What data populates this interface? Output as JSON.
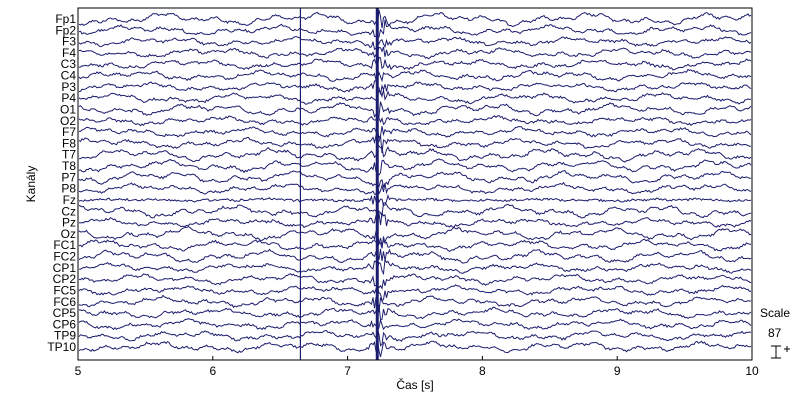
{
  "chart_data": {
    "type": "line",
    "title": "",
    "xlabel": "Čas [s]",
    "ylabel": "Kanály",
    "xlim": [
      5,
      10
    ],
    "x_ticks": [
      5,
      6,
      7,
      8,
      9,
      10
    ],
    "x_tick_labels": [
      "5",
      "6",
      "7",
      "8",
      "9",
      "10"
    ],
    "grid": false,
    "colors": {
      "trace": "#1c1c6e",
      "axis": "#000000",
      "background": "#ffffff"
    },
    "channels": [
      "Fp1",
      "Fp2",
      "F3",
      "F4",
      "C3",
      "C4",
      "P3",
      "P4",
      "O1",
      "O2",
      "F7",
      "F8",
      "T7",
      "T8",
      "P7",
      "P8",
      "Fz",
      "Cz",
      "Pz",
      "Oz",
      "FC1",
      "FC2",
      "CP1",
      "CP2",
      "FC5",
      "FC6",
      "CP5",
      "CP6",
      "TP9",
      "TP10"
    ],
    "markers_s": [
      6.65,
      7.22
    ],
    "scale": {
      "label": "Scale",
      "value": "87"
    }
  }
}
